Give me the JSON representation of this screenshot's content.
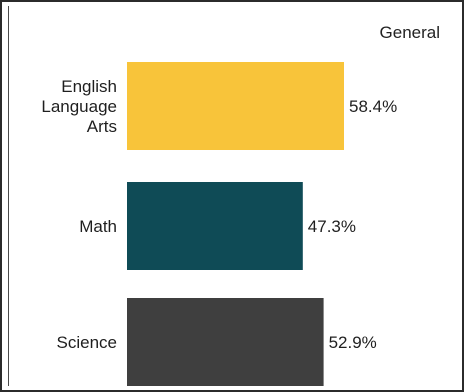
{
  "chart_data": {
    "type": "bar",
    "orientation": "horizontal",
    "legend": "General",
    "legend_position": "top-right",
    "categories": [
      [
        "English",
        "Language",
        "Arts"
      ],
      [
        "Math"
      ],
      [
        "Science"
      ]
    ],
    "values": [
      58.4,
      47.3,
      52.9
    ],
    "value_labels": [
      "58.4%",
      "47.3%",
      "52.9%"
    ],
    "colors": [
      "#f8c43a",
      "#0f4b56",
      "#3f3f3f"
    ],
    "value_unit": "%"
  }
}
